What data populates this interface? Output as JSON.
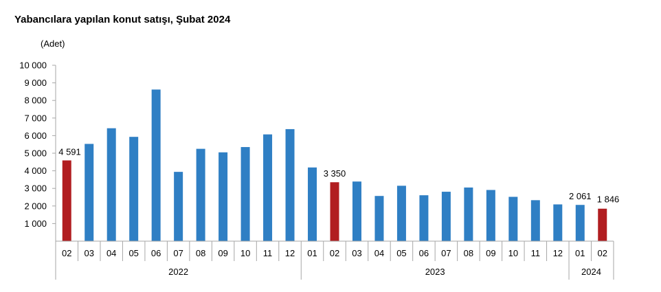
{
  "title": "Yabancılara yapılan konut satışı, Şubat 2024",
  "unit": "(Adet)",
  "colors": {
    "regular": "#2f7fc4",
    "highlight": "#b11d20",
    "axis": "#a6a6a6"
  },
  "chart_data": {
    "type": "bar",
    "title": "Yabancılara yapılan konut satışı, Şubat 2024",
    "ylabel": "(Adet)",
    "xlabel": "",
    "ylim": [
      0,
      10000
    ],
    "yticks": [
      "1 000",
      "2 000",
      "3 000",
      "4 000",
      "5 000",
      "6 000",
      "7 000",
      "8 000",
      "9 000",
      "10 000"
    ],
    "ytick_values": [
      1000,
      2000,
      3000,
      4000,
      5000,
      6000,
      7000,
      8000,
      9000,
      10000
    ],
    "grid": false,
    "categories": [
      "02",
      "03",
      "04",
      "05",
      "06",
      "07",
      "08",
      "09",
      "10",
      "11",
      "12",
      "01",
      "02",
      "03",
      "04",
      "05",
      "06",
      "07",
      "08",
      "09",
      "10",
      "11",
      "12",
      "01",
      "02"
    ],
    "values": [
      4591,
      5530,
      6420,
      5930,
      8620,
      3940,
      5250,
      5050,
      5350,
      6070,
      6370,
      4190,
      3350,
      3390,
      2570,
      3150,
      2610,
      2810,
      3050,
      2910,
      2520,
      2330,
      2090,
      2061,
      1846
    ],
    "highlight": [
      true,
      false,
      false,
      false,
      false,
      false,
      false,
      false,
      false,
      false,
      false,
      false,
      true,
      false,
      false,
      false,
      false,
      false,
      false,
      false,
      false,
      false,
      false,
      false,
      true
    ],
    "data_labels": [
      "4 591",
      "",
      "",
      "",
      "",
      "",
      "",
      "",
      "",
      "",
      "",
      "",
      "3 350",
      "",
      "",
      "",
      "",
      "",
      "",
      "",
      "",
      "",
      "",
      "2 061",
      "1 846"
    ],
    "year_groups": [
      {
        "label": "2022",
        "count": 11
      },
      {
        "label": "2023",
        "count": 12
      },
      {
        "label": "2024",
        "count": 2
      }
    ]
  }
}
